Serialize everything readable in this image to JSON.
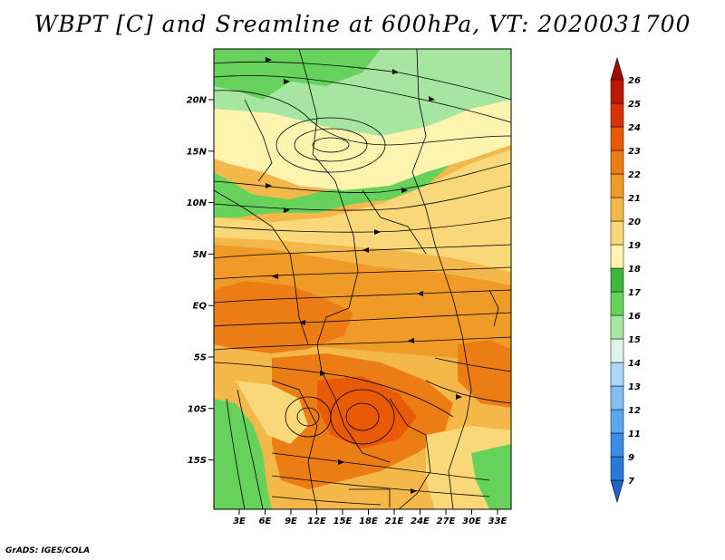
{
  "title": "WBPT [C] and Sreamline at 600hPa, VT: 2020031700",
  "credit": "GrADS: IGES/COLA",
  "map": {
    "lat_ticks": [
      "20N",
      "15N",
      "10N",
      "5N",
      "EQ",
      "5S",
      "10S",
      "15S"
    ],
    "lon_ticks": [
      "3E",
      "6E",
      "9E",
      "12E",
      "15E",
      "18E",
      "21E",
      "24E",
      "27E",
      "30E",
      "33E"
    ]
  },
  "colorbar": {
    "labels": [
      "7",
      "9",
      "11",
      "12",
      "13",
      "14",
      "15",
      "16",
      "17",
      "18",
      "19",
      "20",
      "21",
      "22",
      "23",
      "24",
      "25",
      "26"
    ],
    "colors": [
      "#1f63c8",
      "#2a78d8",
      "#3a8ee6",
      "#5aa8ee",
      "#82c0f4",
      "#aad6f8",
      "#e0f4ee",
      "#a6e6a0",
      "#66d25c",
      "#3cb83a",
      "#fef4b0",
      "#f8d878",
      "#f4b84a",
      "#f09a28",
      "#ec7c14",
      "#e85a06",
      "#d83200",
      "#bb1800",
      "#a00c00"
    ]
  }
}
